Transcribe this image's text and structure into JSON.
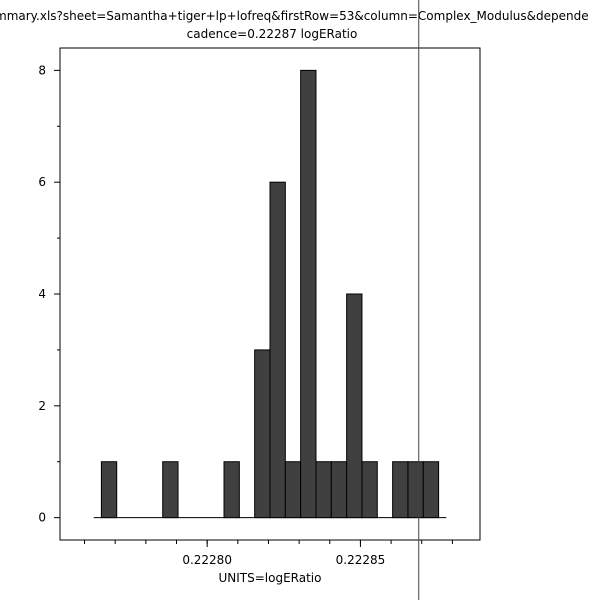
{
  "chart_data": {
    "type": "bar",
    "title": "mmary.xls?sheet=Samantha+tiger+lp+lofreq&firstRow=53&column=Complex_Modulus&depende",
    "subtitle": "cadence=0.22287 logERatio",
    "xlabel": "UNITS=logERatio",
    "ylabel": "",
    "bin_start": 0.2227655,
    "bin_width": 5e-06,
    "counts": [
      1,
      0,
      0,
      0,
      1,
      0,
      0,
      0,
      1,
      0,
      3,
      6,
      1,
      8,
      1,
      1,
      4,
      1,
      0,
      1,
      1,
      1
    ],
    "xlim": [
      0.222752,
      0.222889
    ],
    "ylim": [
      -0.4,
      8.4
    ],
    "x_ticks": [
      {
        "value": 0.2228,
        "label": "0.22280"
      },
      {
        "value": 0.22285,
        "label": "0.22285"
      }
    ],
    "x_minor_step": 1e-05,
    "y_ticks": [
      {
        "value": 0,
        "label": "0"
      },
      {
        "value": 2,
        "label": "2"
      },
      {
        "value": 4,
        "label": "4"
      },
      {
        "value": 6,
        "label": "6"
      },
      {
        "value": 8,
        "label": "8"
      }
    ],
    "marker_line": {
      "value": 0.22287,
      "label": "cadence=0.22287"
    },
    "bar_color": "#404040",
    "grid": false
  }
}
